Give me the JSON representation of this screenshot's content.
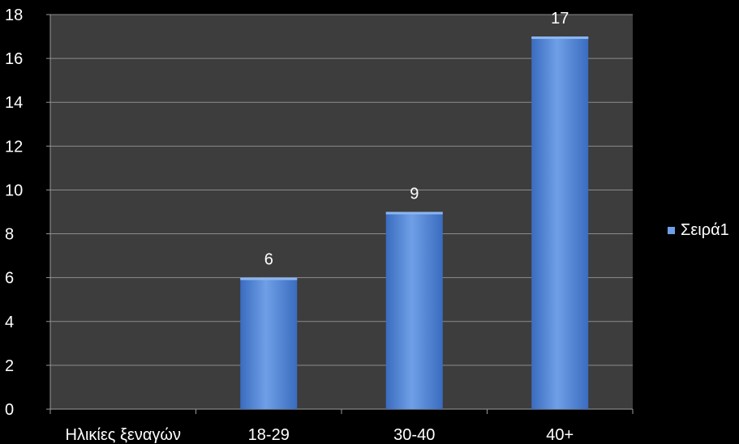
{
  "chart_data": {
    "type": "bar",
    "title": "",
    "xlabel": "",
    "ylabel": "",
    "categories": [
      "Ηλικίες ξεναγών",
      "18-29",
      "30-40",
      "40+"
    ],
    "series": [
      {
        "name": "Σειρά1",
        "values": [
          null,
          6,
          9,
          17
        ]
      }
    ],
    "ylim": [
      0,
      18
    ],
    "yticks": [
      0,
      2,
      4,
      6,
      8,
      10,
      12,
      14,
      16,
      18
    ],
    "data_labels": true,
    "grid": true,
    "legend": "right"
  },
  "colors": {
    "background": "#000000",
    "plot_bg": "#3d3d3d",
    "gridline": "#8c8c8c",
    "axis": "#9a9a9a",
    "bar_dark": "#3a6cc0",
    "bar_light": "#6f9fe6",
    "bar_top": "#8db6f0",
    "text": "#ffffff"
  }
}
